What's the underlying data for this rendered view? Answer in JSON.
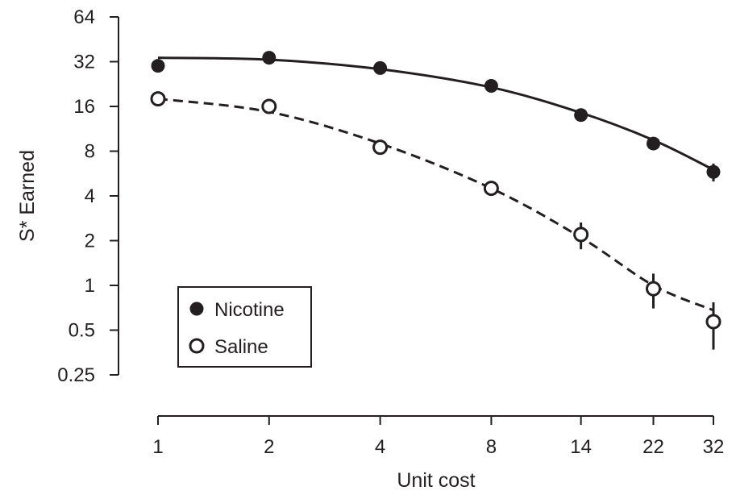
{
  "chart_data": {
    "type": "line",
    "title": "",
    "xlabel": "Unit cost",
    "ylabel": "S* Earned",
    "x_scale": "log",
    "y_scale": "log2",
    "x_ticks": [
      1,
      2,
      4,
      8,
      14,
      22,
      32
    ],
    "x_tick_labels": [
      "1",
      "2",
      "4",
      "8",
      "14",
      "22",
      "32"
    ],
    "y_ticks": [
      0.25,
      0.5,
      1,
      2,
      4,
      8,
      16,
      32,
      64
    ],
    "y_tick_labels": [
      "0.25",
      "0.5",
      "1",
      "2",
      "4",
      "8",
      "16",
      "32",
      "64"
    ],
    "xlim": [
      1,
      32
    ],
    "ylim": [
      0.25,
      64
    ],
    "grid": false,
    "legend_position": "bottom-left",
    "series": [
      {
        "name": "Nicotine",
        "marker": "filled-circle",
        "line_style": "solid",
        "color": "#231f20",
        "x": [
          1,
          2,
          4,
          8,
          14,
          22,
          32
        ],
        "y": [
          30,
          34,
          29,
          22,
          14,
          9,
          5.8
        ],
        "error": [
          0,
          0,
          0,
          0,
          0,
          0,
          0.8
        ],
        "fit": [
          34,
          33,
          28.5,
          21.5,
          14.5,
          9.5,
          6
        ]
      },
      {
        "name": "Saline",
        "marker": "open-circle",
        "line_style": "dashed",
        "color": "#231f20",
        "x": [
          1,
          2,
          4,
          8,
          14,
          22,
          32
        ],
        "y": [
          18,
          16,
          8.5,
          4.5,
          2.2,
          0.95,
          0.57
        ],
        "error": [
          0,
          0,
          0,
          0,
          0.45,
          0.25,
          0.2
        ],
        "fit": [
          18,
          14.7,
          9,
          4.5,
          2.1,
          1.0,
          0.68
        ]
      }
    ]
  }
}
